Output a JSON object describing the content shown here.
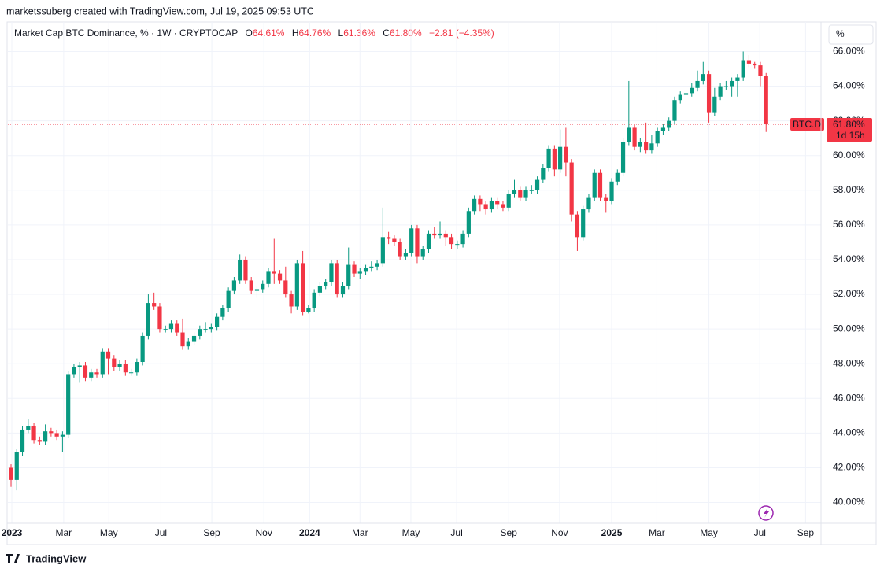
{
  "header": {
    "attribution": "marketssuberg created with TradingView.com, Jul 19, 2025 09:53 UTC",
    "scale_button": "%",
    "footer_logo": "TradingView"
  },
  "chart_data": {
    "type": "candlestick",
    "title": "Market Cap BTC Dominance, % · 1W · CRYPTOCAP",
    "legend": {
      "o_key": "O",
      "o": "64.61%",
      "h_key": "H",
      "h": "64.76%",
      "l_key": "L",
      "l": "61.36%",
      "c_key": "C",
      "c": "61.80%",
      "change": "−2.81 (−4.35%)"
    },
    "price_tag": {
      "symbol": "BTC.D",
      "label": "61.80%",
      "countdown": "1d 15h"
    },
    "up_color": "#089981",
    "down_color": "#f23645",
    "grid": true,
    "open": [
      42.0,
      41.3,
      42.9,
      44.2,
      44.4,
      43.6,
      43.5,
      44.1,
      44.0,
      43.8,
      43.9,
      47.4,
      47.8,
      47.9,
      47.2,
      47.5,
      47.4,
      48.7,
      48.3,
      47.8,
      48.0,
      47.5,
      47.5,
      48.1,
      49.6,
      51.5,
      51.3,
      50.0,
      50.0,
      50.3,
      49.8,
      49.0,
      49.3,
      49.6,
      50.0,
      50.0,
      50.1,
      50.7,
      51.2,
      52.2,
      52.8,
      54.0,
      52.8,
      52.2,
      52.3,
      52.6,
      53.3,
      53.2,
      52.8,
      52.0,
      51.3,
      53.8,
      51.0,
      51.2,
      52.1,
      52.5,
      52.7,
      53.8,
      52.0,
      52.5,
      53.7,
      53.2,
      53.3,
      53.5,
      53.6,
      53.8,
      55.3,
      55.2,
      55.0,
      54.2,
      54.4,
      55.8,
      54.2,
      54.6,
      55.5,
      55.4,
      55.5,
      55.3,
      54.9,
      54.9,
      55.5,
      56.8,
      57.5,
      57.2,
      56.9,
      57.4,
      57.2,
      57.0,
      57.8,
      58.0,
      57.6,
      58.0,
      58.0,
      58.6,
      59.3,
      60.4,
      59.2,
      60.5,
      59.6,
      56.6,
      55.3,
      56.9,
      57.6,
      59.0,
      57.6,
      57.4,
      58.5,
      59.0,
      60.8,
      61.6,
      60.5,
      60.8,
      60.3,
      60.7,
      61.4,
      61.6,
      62.0,
      63.2,
      63.5,
      63.6,
      63.9,
      64.3,
      64.7,
      62.5,
      63.4,
      64.0,
      64.0,
      64.3,
      64.5,
      65.5,
      65.3,
      65.2,
      64.61
    ],
    "high": [
      42.2,
      43.1,
      44.4,
      44.8,
      44.6,
      43.8,
      44.5,
      44.3,
      44.2,
      44.1,
      47.6,
      48.0,
      48.1,
      48.1,
      47.7,
      47.7,
      48.9,
      48.9,
      48.5,
      48.2,
      48.2,
      47.7,
      48.3,
      49.8,
      52.0,
      52.1,
      51.5,
      50.2,
      50.5,
      50.5,
      50.6,
      49.5,
      49.8,
      50.2,
      50.4,
      50.3,
      50.9,
      51.4,
      52.4,
      53.0,
      54.3,
      54.2,
      53.0,
      52.5,
      52.8,
      53.5,
      55.2,
      53.4,
      53.6,
      52.2,
      54.0,
      54.5,
      51.4,
      52.3,
      52.7,
      52.9,
      54.0,
      54.0,
      52.7,
      54.7,
      53.9,
      53.5,
      53.7,
      53.9,
      54.0,
      57.0,
      55.6,
      55.4,
      55.2,
      54.6,
      56.0,
      56.0,
      54.8,
      55.7,
      55.9,
      56.2,
      55.7,
      55.5,
      55.1,
      55.7,
      57.0,
      57.7,
      57.7,
      57.4,
      57.6,
      57.6,
      57.4,
      58.0,
      58.6,
      58.2,
      58.2,
      58.3,
      58.8,
      59.5,
      60.6,
      60.6,
      61.5,
      61.6,
      59.8,
      56.8,
      57.1,
      57.8,
      59.2,
      59.2,
      57.8,
      58.7,
      59.2,
      61.0,
      64.3,
      61.8,
      61.0,
      61.9,
      61.2,
      61.6,
      61.8,
      62.2,
      63.4,
      63.7,
      63.9,
      64.2,
      64.9,
      65.4,
      64.9,
      63.9,
      64.2,
      64.3,
      64.5,
      64.7,
      66.0,
      65.8,
      65.4,
      65.4,
      64.76
    ],
    "low": [
      40.9,
      40.7,
      42.7,
      44.0,
      43.4,
      43.3,
      43.3,
      43.8,
      43.6,
      42.9,
      43.7,
      47.2,
      46.9,
      47.0,
      47.0,
      47.2,
      47.2,
      47.4,
      47.6,
      47.6,
      47.3,
      47.3,
      47.3,
      47.9,
      49.4,
      51.1,
      49.8,
      49.8,
      49.8,
      49.6,
      48.8,
      48.8,
      49.1,
      49.4,
      49.8,
      49.8,
      49.9,
      50.5,
      51.0,
      52.0,
      52.6,
      52.6,
      52.0,
      51.8,
      52.1,
      52.4,
      52.6,
      52.6,
      51.8,
      50.9,
      51.1,
      50.8,
      50.9,
      51.0,
      51.9,
      52.3,
      52.5,
      51.8,
      51.8,
      52.3,
      53.0,
      52.9,
      53.1,
      53.3,
      53.4,
      53.6,
      54.9,
      54.8,
      54.0,
      54.0,
      54.2,
      53.8,
      54.0,
      54.4,
      55.2,
      55.2,
      54.8,
      54.6,
      54.6,
      54.7,
      55.3,
      56.6,
      56.8,
      56.6,
      56.7,
      56.9,
      56.8,
      56.8,
      57.6,
      57.4,
      57.4,
      57.8,
      57.8,
      58.4,
      59.1,
      58.8,
      59.0,
      58.8,
      56.2,
      54.5,
      55.1,
      56.7,
      57.4,
      57.4,
      56.7,
      57.2,
      58.3,
      58.8,
      60.6,
      60.3,
      60.2,
      60.1,
      60.1,
      60.5,
      61.2,
      61.4,
      61.8,
      63.0,
      63.3,
      63.4,
      63.7,
      64.1,
      61.9,
      62.3,
      63.2,
      63.8,
      63.4,
      63.4,
      64.3,
      65.1,
      65.0,
      64.0,
      61.36
    ],
    "close": [
      41.3,
      42.9,
      44.2,
      44.4,
      43.6,
      43.5,
      44.1,
      44.0,
      43.8,
      43.9,
      47.4,
      47.8,
      47.9,
      47.2,
      47.5,
      47.4,
      48.7,
      48.3,
      47.8,
      48.0,
      47.5,
      47.5,
      48.1,
      49.6,
      51.5,
      51.3,
      50.0,
      50.0,
      50.3,
      49.8,
      49.0,
      49.3,
      49.6,
      50.0,
      50.0,
      50.1,
      50.7,
      51.2,
      52.2,
      52.8,
      54.0,
      52.8,
      52.2,
      52.3,
      52.6,
      53.3,
      53.2,
      52.8,
      52.0,
      51.3,
      53.8,
      51.0,
      51.2,
      52.1,
      52.5,
      52.7,
      53.8,
      52.0,
      52.5,
      53.7,
      53.2,
      53.3,
      53.5,
      53.6,
      53.8,
      55.3,
      55.2,
      55.0,
      54.2,
      54.4,
      55.8,
      54.2,
      54.6,
      55.5,
      55.4,
      55.5,
      55.3,
      54.9,
      54.9,
      55.5,
      56.8,
      57.5,
      57.2,
      56.9,
      57.4,
      57.2,
      57.0,
      57.8,
      58.0,
      57.6,
      58.0,
      58.0,
      58.6,
      59.3,
      60.4,
      59.2,
      60.5,
      59.6,
      56.6,
      55.3,
      56.9,
      57.6,
      59.0,
      57.6,
      57.4,
      58.5,
      59.0,
      60.8,
      61.6,
      60.5,
      60.8,
      60.3,
      60.7,
      61.4,
      61.6,
      62.0,
      63.2,
      63.5,
      63.6,
      63.9,
      64.3,
      64.7,
      62.5,
      63.4,
      64.0,
      64.0,
      64.3,
      64.5,
      65.5,
      65.3,
      65.2,
      64.61,
      61.8
    ],
    "ylim": [
      38.8,
      67.7
    ],
    "yticks": [
      {
        "value": 40,
        "label": "40.00%"
      },
      {
        "value": 42,
        "label": "42.00%"
      },
      {
        "value": 44,
        "label": "44.00%"
      },
      {
        "value": 46,
        "label": "46.00%"
      },
      {
        "value": 48,
        "label": "48.00%"
      },
      {
        "value": 50,
        "label": "50.00%"
      },
      {
        "value": 52,
        "label": "52.00%"
      },
      {
        "value": 54,
        "label": "54.00%"
      },
      {
        "value": 56,
        "label": "56.00%"
      },
      {
        "value": 58,
        "label": "58.00%"
      },
      {
        "value": 60,
        "label": "60.00%"
      },
      {
        "value": 62,
        "label": "62.00%"
      },
      {
        "value": 64,
        "label": "64.00%"
      },
      {
        "value": 66,
        "label": "66.00%"
      }
    ],
    "xlim": [
      -0.55,
      141.6
    ],
    "xticks": [
      {
        "value": 0.14,
        "label": "2023"
      },
      {
        "value": 9.2,
        "label": "Mar"
      },
      {
        "value": 17.1,
        "label": "May"
      },
      {
        "value": 26.2,
        "label": "Jul"
      },
      {
        "value": 35.1,
        "label": "Sep"
      },
      {
        "value": 44.2,
        "label": "Nov"
      },
      {
        "value": 52.2,
        "label": "2024"
      },
      {
        "value": 61.0,
        "label": "Mar"
      },
      {
        "value": 69.9,
        "label": "May"
      },
      {
        "value": 77.9,
        "label": "Jul"
      },
      {
        "value": 87.0,
        "label": "Sep"
      },
      {
        "value": 95.9,
        "label": "Nov"
      },
      {
        "value": 105.0,
        "label": "2025"
      },
      {
        "value": 112.9,
        "label": "Mar"
      },
      {
        "value": 122.0,
        "label": "May"
      },
      {
        "value": 130.9,
        "label": "Jul"
      },
      {
        "value": 138.9,
        "label": "Sep"
      }
    ]
  }
}
